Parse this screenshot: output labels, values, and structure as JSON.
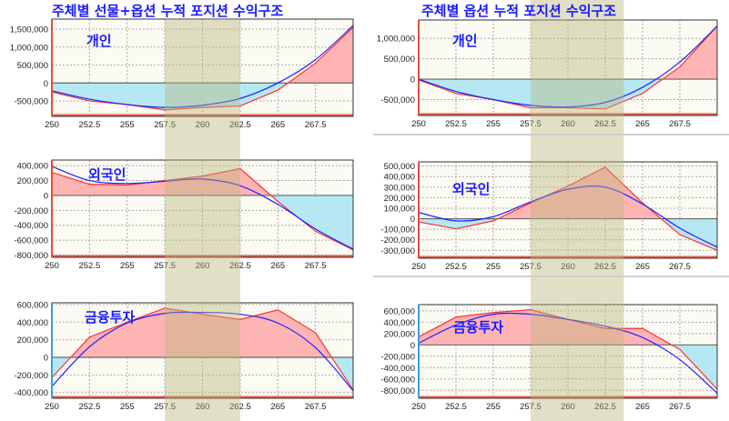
{
  "titles": {
    "left": "주체별 선물+옵션 누적 포지션 수익구조",
    "right": "주체별 옵션 누적 포지션 수익구조"
  },
  "colors": {
    "red_line": "#ff3030",
    "blue_line": "#2020ff",
    "positive_fill": "#ffb4b4",
    "negative_fill": "#b6e8f4",
    "highlight_band": "#b8b67a",
    "title": "#1a1aff"
  },
  "chart_data": [
    {
      "type": "line",
      "group": "left",
      "label": "개인",
      "xlim": [
        250,
        270
      ],
      "xticks": [
        "250",
        "252.5",
        "255",
        "257.5",
        "260",
        "262.5",
        "265",
        "267.5"
      ],
      "ylim": [
        -930000,
        1780000
      ],
      "yticks": [
        {
          "v": 1500000,
          "t": "1,500,000"
        },
        {
          "v": 1000000,
          "t": "1,000,000"
        },
        {
          "v": 500000,
          "t": "500,000"
        },
        {
          "v": 0,
          "t": "0"
        },
        {
          "v": -500000,
          "t": "-500,000"
        }
      ],
      "highlight_range": [
        257.5,
        262.5
      ],
      "x": [
        250,
        252.5,
        255,
        257.5,
        260,
        262.5,
        265,
        267.5,
        270
      ],
      "series": [
        {
          "name": "red",
          "values": [
            -250000,
            -500000,
            -600000,
            -750000,
            -680000,
            -640000,
            -200000,
            550000,
            1550000
          ]
        },
        {
          "name": "blue",
          "values": [
            -220000,
            -450000,
            -600000,
            -680000,
            -620000,
            -430000,
            0,
            650000,
            1600000
          ]
        }
      ]
    },
    {
      "type": "line",
      "group": "left",
      "label": "외국인",
      "xlim": [
        250,
        270
      ],
      "xticks": [
        "250",
        "252.5",
        "255",
        "257.5",
        "260",
        "262.5",
        "265",
        "267.5"
      ],
      "ylim": [
        -830000,
        475000
      ],
      "yticks": [
        {
          "v": 400000,
          "t": "400,000"
        },
        {
          "v": 200000,
          "t": "200,000"
        },
        {
          "v": 0,
          "t": "0"
        },
        {
          "v": -200000,
          "t": "-200,000"
        },
        {
          "v": -400000,
          "t": "-400,000"
        },
        {
          "v": -600000,
          "t": "-600,000"
        },
        {
          "v": -800000,
          "t": "-800,000"
        }
      ],
      "highlight_range": [
        257.5,
        262.5
      ],
      "x": [
        250,
        252.5,
        255,
        257.5,
        260,
        262.5,
        265,
        267.5,
        270
      ],
      "series": [
        {
          "name": "red",
          "values": [
            310000,
            150000,
            140000,
            200000,
            260000,
            360000,
            -80000,
            -480000,
            -730000
          ]
        },
        {
          "name": "blue",
          "values": [
            390000,
            200000,
            160000,
            190000,
            220000,
            130000,
            -120000,
            -450000,
            -720000
          ]
        }
      ]
    },
    {
      "type": "line",
      "group": "left",
      "label": "금융투자",
      "xlim": [
        250,
        270
      ],
      "xticks": [
        "250",
        "252.5",
        "255",
        "257.5",
        "260",
        "262.5",
        "265",
        "267.5"
      ],
      "ylim": [
        -465000,
        620000
      ],
      "yticks": [
        {
          "v": 600000,
          "t": "600,000"
        },
        {
          "v": 400000,
          "t": "400,000"
        },
        {
          "v": 200000,
          "t": "200,000"
        },
        {
          "v": 0,
          "t": "0"
        },
        {
          "v": -200000,
          "t": "-200,000"
        },
        {
          "v": -400000,
          "t": "-400,000"
        }
      ],
      "highlight_range": [
        257.5,
        262.5
      ],
      "x": [
        250,
        252.5,
        255,
        257.5,
        260,
        262.5,
        265,
        267.5,
        270
      ],
      "series": [
        {
          "name": "red",
          "values": [
            -230000,
            230000,
            400000,
            560000,
            490000,
            430000,
            540000,
            280000,
            -370000
          ]
        },
        {
          "name": "blue",
          "values": [
            -330000,
            120000,
            390000,
            500000,
            510000,
            490000,
            390000,
            110000,
            -380000
          ]
        }
      ]
    },
    {
      "type": "line",
      "group": "right",
      "label": "개인",
      "xlim": [
        250,
        270
      ],
      "xticks": [
        "250",
        "252.5",
        "255",
        "257.5",
        "260",
        "262.5",
        "265",
        "267.5"
      ],
      "ylim": [
        -890000,
        1450000
      ],
      "yticks": [
        {
          "v": 1000000,
          "t": "1,000,000"
        },
        {
          "v": 500000,
          "t": "500,000"
        },
        {
          "v": 0,
          "t": "0"
        },
        {
          "v": -500000,
          "t": "-500,000"
        }
      ],
      "highlight_range": [
        257.5,
        263.75
      ],
      "x": [
        250,
        252.5,
        255,
        257.5,
        260,
        262.5,
        265,
        267.5,
        270
      ],
      "series": [
        {
          "name": "red",
          "values": [
            -20000,
            -350000,
            -500000,
            -700000,
            -700000,
            -730000,
            -350000,
            300000,
            1300000
          ]
        },
        {
          "name": "blue",
          "values": [
            0,
            -300000,
            -500000,
            -640000,
            -680000,
            -570000,
            -200000,
            420000,
            1300000
          ]
        }
      ]
    },
    {
      "type": "line",
      "group": "right",
      "label": "외국인",
      "xlim": [
        250,
        270
      ],
      "xticks": [
        "250",
        "252.5",
        "255",
        "257.5",
        "260",
        "262.5",
        "265",
        "267.5"
      ],
      "ylim": [
        -375000,
        540000
      ],
      "yticks": [
        {
          "v": 500000,
          "t": "500,000"
        },
        {
          "v": 400000,
          "t": "400,000"
        },
        {
          "v": 300000,
          "t": "300,000"
        },
        {
          "v": 200000,
          "t": "200,000"
        },
        {
          "v": 100000,
          "t": "100,000"
        },
        {
          "v": 0,
          "t": "0"
        },
        {
          "v": -100000,
          "t": "-100,000"
        },
        {
          "v": -200000,
          "t": "-200,000"
        },
        {
          "v": -300000,
          "t": "-300,000"
        }
      ],
      "highlight_range": [
        257.5,
        263.75
      ],
      "x": [
        250,
        252.5,
        255,
        257.5,
        260,
        262.5,
        265,
        267.5,
        270
      ],
      "series": [
        {
          "name": "red",
          "values": [
            -30000,
            -95000,
            -20000,
            150000,
            310000,
            490000,
            150000,
            -150000,
            -300000
          ]
        },
        {
          "name": "blue",
          "values": [
            60000,
            -20000,
            20000,
            160000,
            280000,
            300000,
            140000,
            -90000,
            -270000
          ]
        }
      ]
    },
    {
      "type": "line",
      "group": "right",
      "label": "금융투자",
      "xlim": [
        250,
        270
      ],
      "xticks": [
        "250",
        "252.5",
        "255",
        "257.5",
        "260",
        "262.5",
        "265",
        "267.5"
      ],
      "ylim": [
        -940000,
        710000
      ],
      "yticks": [
        {
          "v": 600000,
          "t": "600,000"
        },
        {
          "v": 400000,
          "t": "400,000"
        },
        {
          "v": 200000,
          "t": "200,000"
        },
        {
          "v": 0,
          "t": "0"
        },
        {
          "v": -200000,
          "t": "-200,000"
        },
        {
          "v": -400000,
          "t": "-400,000"
        },
        {
          "v": -600000,
          "t": "-600,000"
        },
        {
          "v": -800000,
          "t": "-800,000"
        }
      ],
      "highlight_range": [
        257.5,
        263.75
      ],
      "x": [
        250,
        252.5,
        255,
        257.5,
        260,
        262.5,
        265,
        267.5,
        270
      ],
      "series": [
        {
          "name": "red",
          "values": [
            140000,
            490000,
            570000,
            620000,
            450000,
            290000,
            290000,
            -80000,
            -780000
          ]
        },
        {
          "name": "blue",
          "values": [
            30000,
            350000,
            540000,
            540000,
            450000,
            330000,
            130000,
            -260000,
            -850000
          ]
        }
      ]
    }
  ]
}
